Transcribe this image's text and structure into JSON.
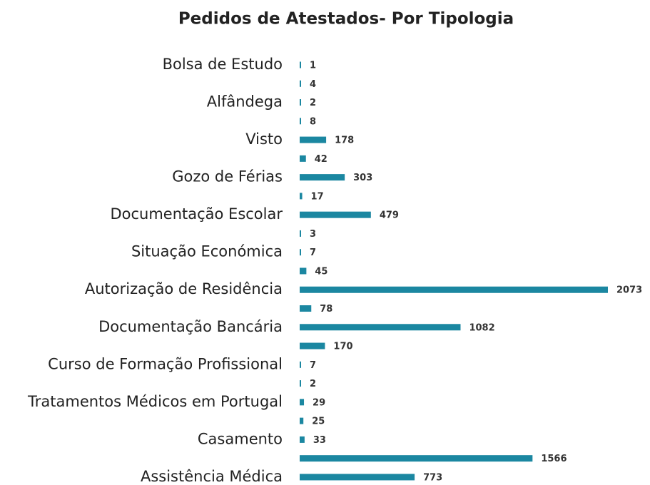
{
  "chart_data": {
    "type": "barh",
    "title": "Pedidos de Atestados- Por Tipologia",
    "categories": [
      "Bolsa de Estudo",
      null,
      "Alfândega",
      null,
      "Visto",
      null,
      "Gozo de Férias",
      null,
      "Documentação Escolar",
      null,
      "Situação Económica",
      null,
      "Autorização de Residência",
      null,
      "Documentação Bancária",
      null,
      "Curso de Formação Profissional",
      null,
      "Tratamentos Médicos em Portugal",
      null,
      "Casamento",
      null,
      "Assistência Médica"
    ],
    "values": [
      1,
      4,
      2,
      8,
      178,
      42,
      303,
      17,
      479,
      3,
      7,
      45,
      2073,
      78,
      1082,
      170,
      7,
      2,
      29,
      25,
      33,
      1566,
      773
    ],
    "color": "#1b87a1"
  }
}
